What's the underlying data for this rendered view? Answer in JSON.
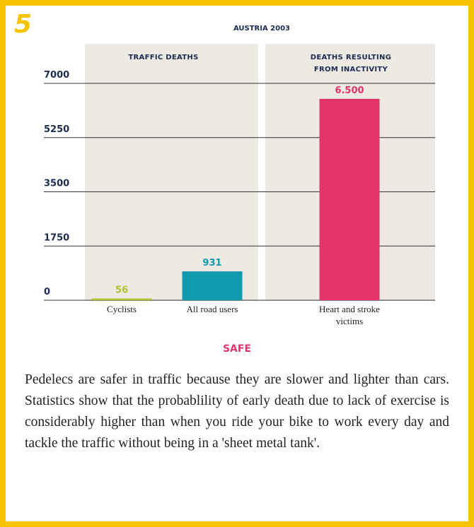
{
  "figure_number": "5",
  "chart_data": {
    "type": "bar",
    "title": "AUSTRIA 2003",
    "groups": [
      "TRAFFIC DEATHS",
      "DEATHS RESULTING FROM INACTIVITY"
    ],
    "categories": [
      "Cyclists",
      "All road users",
      "Heart and stroke victims"
    ],
    "values": [
      56,
      931,
      6500
    ],
    "value_labels": [
      "56",
      "931",
      "6.500"
    ],
    "colors": [
      "#b3c22c",
      "#1199ae",
      "#e3336b"
    ],
    "ylim": [
      0,
      7000
    ],
    "yticks": [
      0,
      1750,
      3500,
      5250,
      7000
    ],
    "grid": true
  },
  "heading": "SAFE",
  "body": "Pedelecs are safer in traffic because they are slower and lighter than cars. Statistics show that the probablility of early death due to lack of exercise is considerably higher than when you ride your bike to work every day and tackle the traffic without being in a 'sheet metal tank'."
}
